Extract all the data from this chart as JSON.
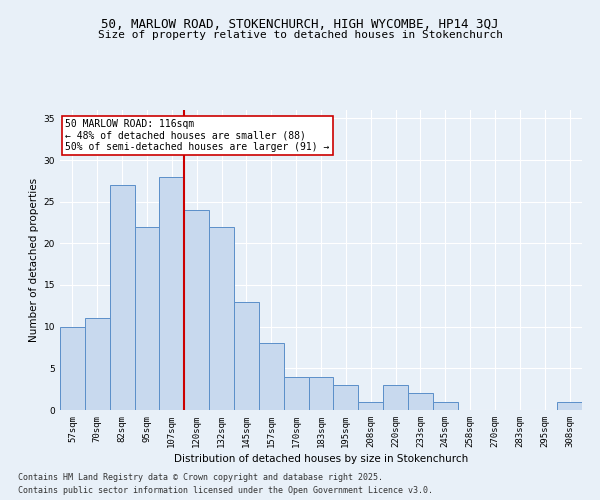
{
  "title_line1": "50, MARLOW ROAD, STOKENCHURCH, HIGH WYCOMBE, HP14 3QJ",
  "title_line2": "Size of property relative to detached houses in Stokenchurch",
  "xlabel": "Distribution of detached houses by size in Stokenchurch",
  "ylabel": "Number of detached properties",
  "categories": [
    "57sqm",
    "70sqm",
    "82sqm",
    "95sqm",
    "107sqm",
    "120sqm",
    "132sqm",
    "145sqm",
    "157sqm",
    "170sqm",
    "183sqm",
    "195sqm",
    "208sqm",
    "220sqm",
    "233sqm",
    "245sqm",
    "258sqm",
    "270sqm",
    "283sqm",
    "295sqm",
    "308sqm"
  ],
  "values": [
    10,
    11,
    27,
    22,
    28,
    24,
    22,
    13,
    8,
    4,
    4,
    3,
    1,
    3,
    2,
    1,
    0,
    0,
    0,
    0,
    1
  ],
  "bar_color": "#c8d9ee",
  "bar_edge_color": "#5b8fc9",
  "vline_color": "#cc0000",
  "vline_x": 4.5,
  "annotation_text": "50 MARLOW ROAD: 116sqm\n← 48% of detached houses are smaller (88)\n50% of semi-detached houses are larger (91) →",
  "annotation_box_facecolor": "#ffffff",
  "annotation_box_edgecolor": "#cc0000",
  "ylim": [
    0,
    36
  ],
  "yticks": [
    0,
    5,
    10,
    15,
    20,
    25,
    30,
    35
  ],
  "background_color": "#e8f0f8",
  "grid_color": "#ffffff",
  "footer_line1": "Contains HM Land Registry data © Crown copyright and database right 2025.",
  "footer_line2": "Contains public sector information licensed under the Open Government Licence v3.0.",
  "title_fontsize": 9,
  "subtitle_fontsize": 8,
  "axis_label_fontsize": 7.5,
  "tick_fontsize": 6.5,
  "annotation_fontsize": 7,
  "footer_fontsize": 6
}
